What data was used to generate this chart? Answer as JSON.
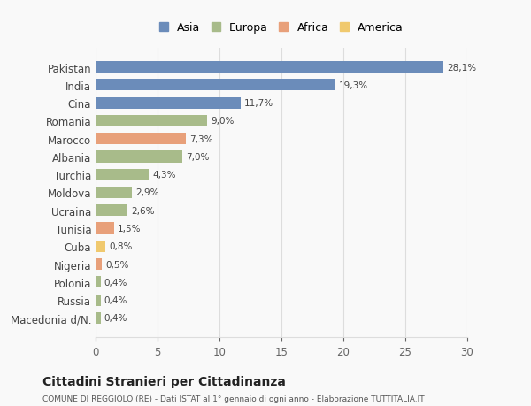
{
  "countries": [
    "Pakistan",
    "India",
    "Cina",
    "Romania",
    "Marocco",
    "Albania",
    "Turchia",
    "Moldova",
    "Ucraina",
    "Tunisia",
    "Cuba",
    "Nigeria",
    "Polonia",
    "Russia",
    "Macedonia d/N."
  ],
  "values": [
    28.1,
    19.3,
    11.7,
    9.0,
    7.3,
    7.0,
    4.3,
    2.9,
    2.6,
    1.5,
    0.8,
    0.5,
    0.4,
    0.4,
    0.4
  ],
  "labels": [
    "28,1%",
    "19,3%",
    "11,7%",
    "9,0%",
    "7,3%",
    "7,0%",
    "4,3%",
    "2,9%",
    "2,6%",
    "1,5%",
    "0,8%",
    "0,5%",
    "0,4%",
    "0,4%",
    "0,4%"
  ],
  "colors": [
    "#6b8cba",
    "#6b8cba",
    "#6b8cba",
    "#a8bb8a",
    "#e8a07a",
    "#a8bb8a",
    "#a8bb8a",
    "#a8bb8a",
    "#a8bb8a",
    "#e8a07a",
    "#f0c96e",
    "#e8a07a",
    "#a8bb8a",
    "#a8bb8a",
    "#a8bb8a"
  ],
  "legend_labels": [
    "Asia",
    "Europa",
    "Africa",
    "America"
  ],
  "legend_colors": [
    "#6b8cba",
    "#a8bb8a",
    "#e8a07a",
    "#f0c96e"
  ],
  "title": "Cittadini Stranieri per Cittadinanza",
  "subtitle": "COMUNE DI REGGIOLO (RE) - Dati ISTAT al 1° gennaio di ogni anno - Elaborazione TUTTITALIA.IT",
  "xlim": [
    0,
    30
  ],
  "xticks": [
    0,
    5,
    10,
    15,
    20,
    25,
    30
  ],
  "background_color": "#f9f9f9",
  "grid_color": "#dddddd"
}
